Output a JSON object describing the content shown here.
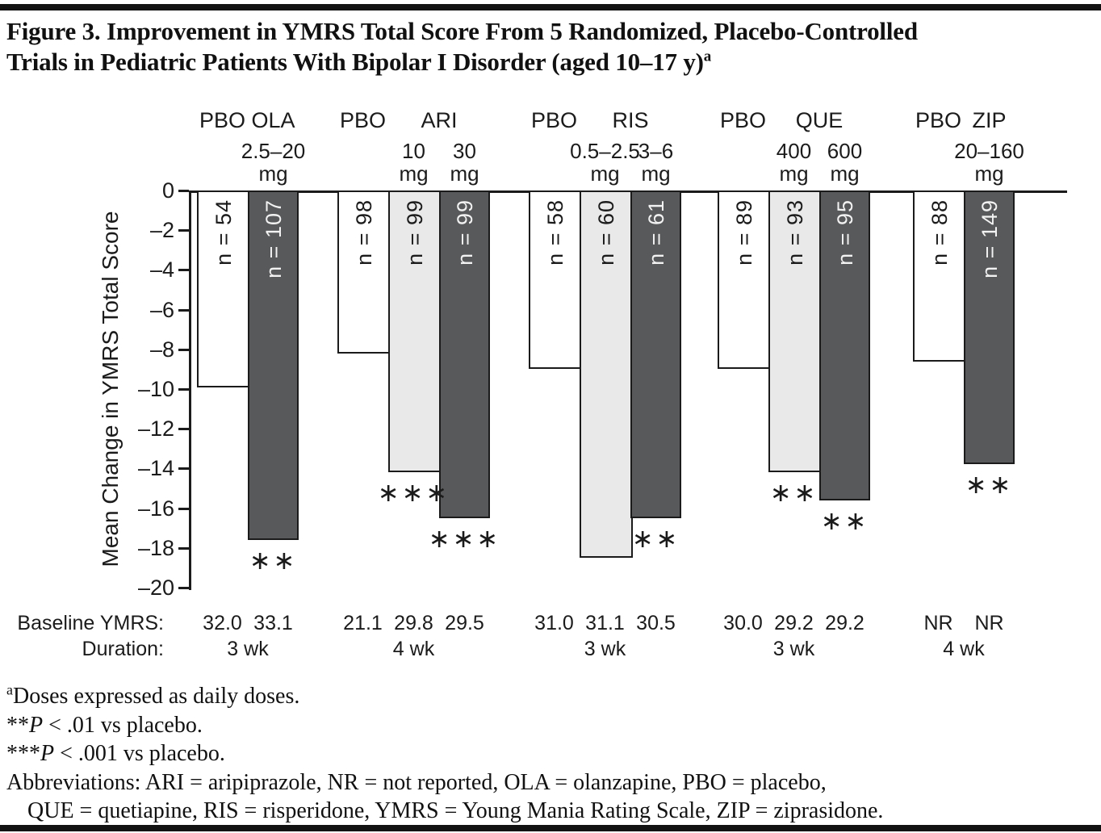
{
  "title": {
    "line1": "Figure 3. Improvement in YMRS Total Score From 5 Randomized, Placebo-Controlled",
    "line2": "Trials in Pediatric Patients With Bipolar I Disorder (aged 10–17 y)",
    "sup": "a"
  },
  "table": {
    "baseline_label": "Baseline YMRS:",
    "duration_label": "Duration:"
  },
  "colors": {
    "ink": "#1b1b1b",
    "dark_bar": "#58595b",
    "light_bar": "#e9e9e9",
    "white_bar": "#ffffff",
    "dark_bar_text": "#f2f2f2"
  },
  "chart_data": {
    "type": "bar",
    "title": "Improvement in YMRS Total Score From 5 Randomized, Placebo-Controlled Trials",
    "xlabel": "",
    "ylabel": "Mean Change in YMRS Total Score",
    "ylim": [
      0,
      -20
    ],
    "ytick_labels": [
      "0",
      "–2",
      "–4",
      "–6",
      "–8",
      "–10",
      "–12",
      "–14",
      "–16",
      "–18",
      "–20"
    ],
    "grid": false,
    "legend": false,
    "groups": [
      {
        "pbo_label": "PBO",
        "drug_label": "OLA",
        "duration": "3 wk",
        "bars": [
          {
            "arm": "PBO",
            "dose": "",
            "dose_unit": "",
            "n_label": "n = 54",
            "value": -9.9,
            "baseline": "32.0",
            "fill": "white",
            "sig": ""
          },
          {
            "arm": "OLA",
            "dose": "2.5–20",
            "dose_unit": "mg",
            "n_label": "n = 107",
            "value": -17.6,
            "baseline": "33.1",
            "fill": "dark",
            "sig": "**"
          }
        ]
      },
      {
        "pbo_label": "PBO",
        "drug_label": "ARI",
        "duration": "4 wk",
        "bars": [
          {
            "arm": "PBO",
            "dose": "",
            "dose_unit": "",
            "n_label": "n = 98",
            "value": -8.2,
            "baseline": "21.1",
            "fill": "white",
            "sig": ""
          },
          {
            "arm": "ARI",
            "dose": "10",
            "dose_unit": "mg",
            "n_label": "n = 99",
            "value": -14.2,
            "baseline": "29.8",
            "fill": "light",
            "sig": "***"
          },
          {
            "arm": "ARI",
            "dose": "30",
            "dose_unit": "mg",
            "n_label": "n = 99",
            "value": -16.5,
            "baseline": "29.5",
            "fill": "dark",
            "sig": "***"
          }
        ]
      },
      {
        "pbo_label": "PBO",
        "drug_label": "RIS",
        "duration": "3 wk",
        "bars": [
          {
            "arm": "PBO",
            "dose": "",
            "dose_unit": "",
            "n_label": "n = 58",
            "value": -9.0,
            "baseline": "31.0",
            "fill": "white",
            "sig": ""
          },
          {
            "arm": "RIS",
            "dose": "0.5–2.5",
            "dose_unit": "mg",
            "n_label": "n = 60",
            "value": -18.5,
            "baseline": "31.1",
            "fill": "light",
            "sig": ""
          },
          {
            "arm": "RIS",
            "dose": "3–6",
            "dose_unit": "mg",
            "n_label": "n = 61",
            "value": -16.5,
            "baseline": "30.5",
            "fill": "dark",
            "sig": "**"
          }
        ]
      },
      {
        "pbo_label": "PBO",
        "drug_label": "QUE",
        "duration": "3 wk",
        "bars": [
          {
            "arm": "PBO",
            "dose": "",
            "dose_unit": "",
            "n_label": "n = 89",
            "value": -9.0,
            "baseline": "30.0",
            "fill": "white",
            "sig": ""
          },
          {
            "arm": "QUE",
            "dose": "400",
            "dose_unit": "mg",
            "n_label": "n = 93",
            "value": -14.2,
            "baseline": "29.2",
            "fill": "light",
            "sig": "**"
          },
          {
            "arm": "QUE",
            "dose": "600",
            "dose_unit": "mg",
            "n_label": "n = 95",
            "value": -15.6,
            "baseline": "29.2",
            "fill": "dark",
            "sig": "**"
          }
        ]
      },
      {
        "pbo_label": "PBO",
        "drug_label": "ZIP",
        "duration": "4 wk",
        "bars": [
          {
            "arm": "PBO",
            "dose": "",
            "dose_unit": "",
            "n_label": "n = 88",
            "value": -8.6,
            "baseline": "NR",
            "fill": "white",
            "sig": ""
          },
          {
            "arm": "ZIP",
            "dose": "20–160",
            "dose_unit": "mg",
            "n_label": "n = 149",
            "value": -13.8,
            "baseline": "NR",
            "fill": "dark",
            "sig": "**"
          }
        ]
      }
    ]
  },
  "footnotes": [
    {
      "sup": "a",
      "pre": "",
      "italic": "",
      "text": "Doses expressed as daily doses.",
      "indent": false
    },
    {
      "sup": "",
      "pre": "**",
      "italic": "P",
      "text": " < .01 vs placebo.",
      "indent": false
    },
    {
      "sup": "",
      "pre": "***",
      "italic": "P",
      "text": " < .001 vs placebo.",
      "indent": false
    },
    {
      "sup": "",
      "pre": "",
      "italic": "",
      "text": "Abbreviations: ARI = aripiprazole, NR = not reported, OLA = olanzapine, PBO = placebo,",
      "indent": false
    },
    {
      "sup": "",
      "pre": "",
      "italic": "",
      "text": "QUE = quetiapine, RIS = risperidone, YMRS = Young Mania Rating Scale, ZIP = ziprasidone.",
      "indent": true
    }
  ]
}
